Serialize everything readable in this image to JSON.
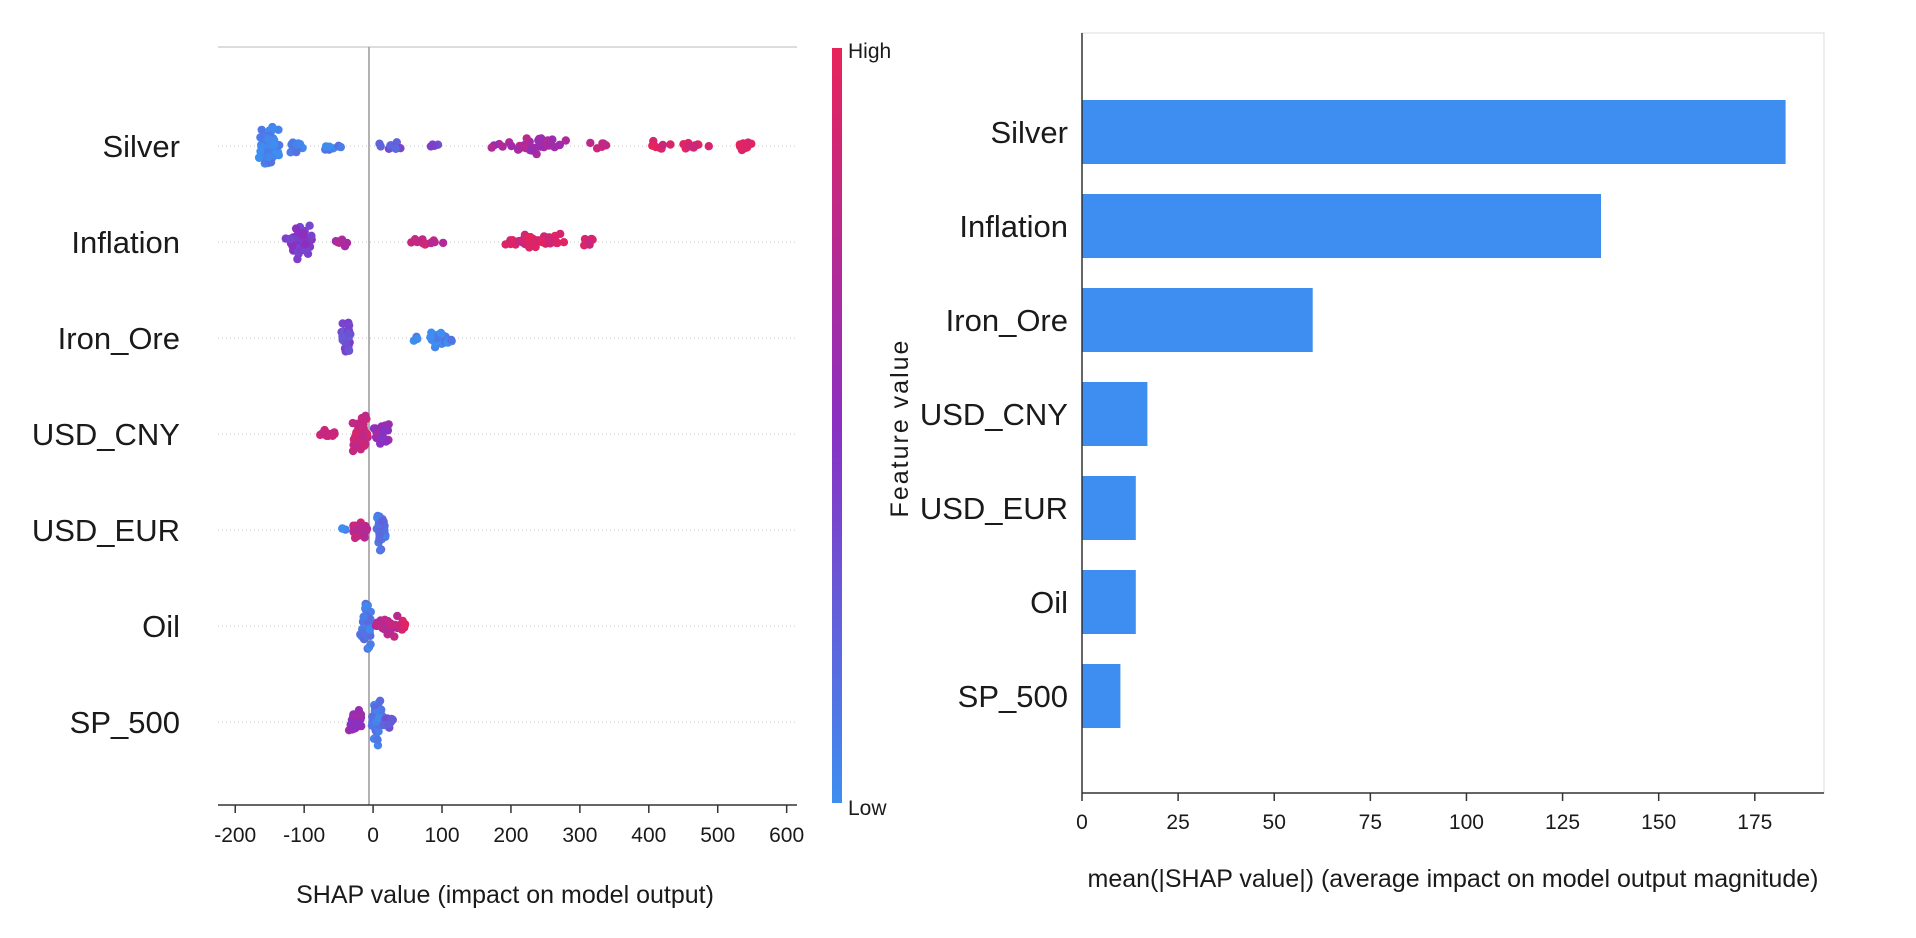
{
  "chart_data": [
    {
      "type": "scatter",
      "subtype": "beeswarm",
      "features": [
        "Silver",
        "Inflation",
        "Iron_Ore",
        "USD_CNY",
        "USD_EUR",
        "Oil",
        "SP_500"
      ],
      "xlabel": "SHAP value (impact on model output)",
      "xlim": [
        -225,
        615
      ],
      "xticks": [
        -200,
        -100,
        0,
        100,
        200,
        300,
        400,
        500,
        600
      ],
      "tick_labels": [
        "-200",
        "-100",
        "0",
        "100",
        "200",
        "300",
        "400",
        "500",
        "600"
      ],
      "colorbar": {
        "title": "Feature value",
        "high_label": "High",
        "low_label": "Low",
        "low_color": "#3d8ef0",
        "mid_color": "#8a2fc2",
        "high_color": "#e8235a"
      },
      "clusters": {
        "Silver": [
          {
            "x": -150,
            "spread": 20,
            "height": 26,
            "n": 70,
            "color": 0.05
          },
          {
            "x": -110,
            "spread": 15,
            "height": 10,
            "n": 12,
            "color": 0.1
          },
          {
            "x": -60,
            "spread": 30,
            "height": 6,
            "n": 10,
            "color": 0.1
          },
          {
            "x": 20,
            "spread": 30,
            "height": 5,
            "n": 9,
            "color": 0.3
          },
          {
            "x": 90,
            "spread": 15,
            "height": 4,
            "n": 4,
            "color": 0.4
          },
          {
            "x": 230,
            "spread": 65,
            "height": 10,
            "n": 45,
            "color": 0.65
          },
          {
            "x": 330,
            "spread": 25,
            "height": 5,
            "n": 6,
            "color": 0.75
          },
          {
            "x": 450,
            "spread": 80,
            "height": 6,
            "n": 18,
            "color": 0.9
          },
          {
            "x": 545,
            "spread": 25,
            "height": 6,
            "n": 9,
            "color": 0.95
          }
        ],
        "Inflation": [
          {
            "x": -105,
            "spread": 25,
            "height": 22,
            "n": 55,
            "color": 0.45
          },
          {
            "x": -45,
            "spread": 25,
            "height": 5,
            "n": 8,
            "color": 0.7
          },
          {
            "x": 80,
            "spread": 40,
            "height": 5,
            "n": 12,
            "color": 0.8
          },
          {
            "x": 230,
            "spread": 60,
            "height": 10,
            "n": 50,
            "color": 0.9
          },
          {
            "x": 310,
            "spread": 25,
            "height": 6,
            "n": 8,
            "color": 0.85
          }
        ],
        "Iron_Ore": [
          {
            "x": -40,
            "spread": 10,
            "height": 24,
            "n": 40,
            "color": 0.35
          },
          {
            "x": 95,
            "spread": 25,
            "height": 12,
            "n": 38,
            "color": 0.05
          },
          {
            "x": 60,
            "spread": 10,
            "height": 4,
            "n": 3,
            "color": 0.05
          }
        ],
        "USD_CNY": [
          {
            "x": -65,
            "spread": 25,
            "height": 6,
            "n": 12,
            "color": 0.9
          },
          {
            "x": -20,
            "spread": 18,
            "height": 28,
            "n": 45,
            "color": 0.85
          },
          {
            "x": 12,
            "spread": 18,
            "height": 14,
            "n": 28,
            "color": 0.55
          }
        ],
        "USD_EUR": [
          {
            "x": -20,
            "spread": 15,
            "height": 12,
            "n": 24,
            "color": 0.8
          },
          {
            "x": 12,
            "spread": 12,
            "height": 24,
            "n": 45,
            "color": 0.15
          },
          {
            "x": -42,
            "spread": 5,
            "height": 4,
            "n": 3,
            "color": 0.1
          }
        ],
        "Oil": [
          {
            "x": -10,
            "spread": 10,
            "height": 28,
            "n": 40,
            "color": 0.1
          },
          {
            "x": 20,
            "spread": 25,
            "height": 12,
            "n": 30,
            "color": 0.75
          },
          {
            "x": 45,
            "spread": 12,
            "height": 6,
            "n": 8,
            "color": 0.9
          }
        ],
        "SP_500": [
          {
            "x": -25,
            "spread": 15,
            "height": 14,
            "n": 28,
            "color": 0.55
          },
          {
            "x": 5,
            "spread": 12,
            "height": 28,
            "n": 40,
            "color": 0.1
          },
          {
            "x": 22,
            "spread": 10,
            "height": 8,
            "n": 10,
            "color": 0.3
          }
        ]
      }
    },
    {
      "type": "bar",
      "orientation": "horizontal",
      "categories": [
        "Silver",
        "Inflation",
        "Iron_Ore",
        "USD_CNY",
        "USD_EUR",
        "Oil",
        "SP_500"
      ],
      "values": [
        183,
        135,
        60,
        17,
        14,
        14,
        10
      ],
      "xlabel": "mean(|SHAP value|) (average impact on model output magnitude)",
      "xlim": [
        0,
        193
      ],
      "xticks": [
        0,
        25,
        50,
        75,
        100,
        125,
        150,
        175
      ],
      "tick_labels": [
        "0",
        "25",
        "50",
        "75",
        "100",
        "125",
        "150",
        "175"
      ],
      "bar_color": "#3d8ef0"
    }
  ]
}
